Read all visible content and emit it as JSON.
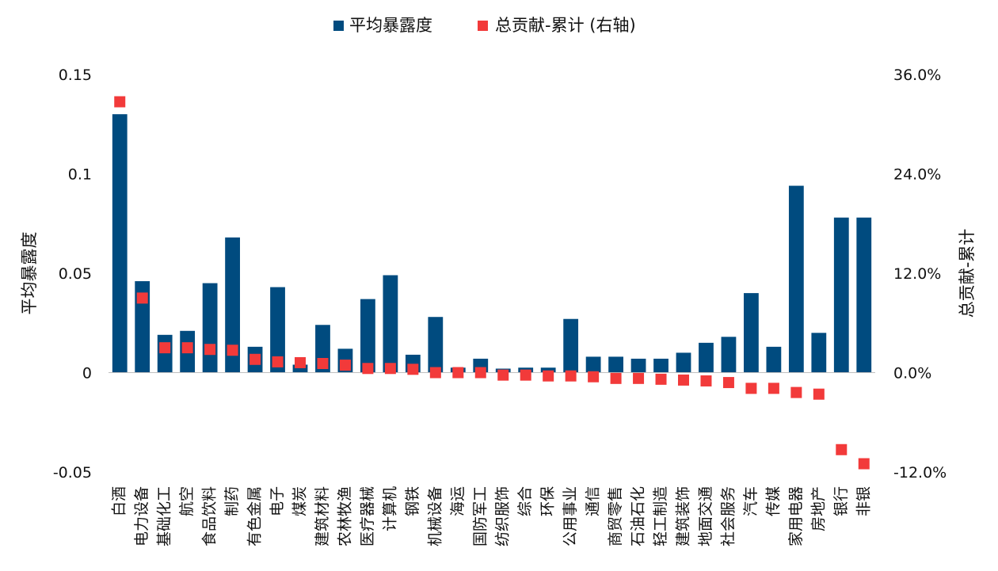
{
  "chart_data": {
    "type": "bar",
    "legend": {
      "placement": "top",
      "entries": [
        {
          "label": "平均暴露度",
          "color": "#004B7F",
          "marker": "bar"
        },
        {
          "label": "总贡献-累计 (右轴)",
          "color": "#F23A3A",
          "marker": "square"
        }
      ]
    },
    "left_axis": {
      "label": "平均暴露度",
      "ylim": [
        -0.05,
        0.15
      ],
      "ticks": [
        "-0.05",
        "0",
        "0.05",
        "0.1",
        "0.15"
      ]
    },
    "right_axis": {
      "label": "总贡献-累计",
      "ylim": [
        -12.0,
        36.0
      ],
      "ticks": [
        "-12.0%",
        "0.0%",
        "12.0%",
        "24.0%",
        "36.0%"
      ]
    },
    "grid": false,
    "categories": [
      "白酒",
      "电力设备",
      "基础化工",
      "航空",
      "食品饮料",
      "制药",
      "有色金属",
      "电子",
      "煤炭",
      "建筑材料",
      "农林牧渔",
      "医疗器械",
      "计算机",
      "钢铁",
      "机械设备",
      "海运",
      "国防军工",
      "纺织服饰",
      "综合",
      "环保",
      "公用事业",
      "通信",
      "商贸零售",
      "石油石化",
      "轻工制造",
      "建筑装饰",
      "地面交通",
      "社会服务",
      "汽车",
      "传媒",
      "家用电器",
      "房地产",
      "银行",
      "非银"
    ],
    "series": [
      {
        "name": "平均暴露度",
        "axis": "left",
        "color": "#004B7F",
        "values": [
          0.13,
          0.046,
          0.019,
          0.021,
          0.045,
          0.068,
          0.013,
          0.043,
          0.004,
          0.024,
          0.012,
          0.037,
          0.049,
          0.009,
          0.028,
          0.0025,
          0.007,
          0.002,
          0.0025,
          0.0025,
          0.027,
          0.008,
          0.008,
          0.007,
          0.007,
          0.01,
          0.015,
          0.018,
          0.04,
          0.013,
          0.094,
          0.02,
          0.078,
          0.078
        ]
      },
      {
        "name": "总贡献-累计 (右轴)",
        "axis": "right",
        "color": "#F23A3A",
        "values": [
          32.7,
          9.0,
          3.0,
          3.0,
          2.8,
          2.7,
          1.6,
          1.3,
          1.2,
          1.1,
          0.9,
          0.5,
          0.5,
          0.4,
          0.0,
          0.0,
          0.0,
          -0.3,
          -0.3,
          -0.4,
          -0.4,
          -0.5,
          -0.7,
          -0.7,
          -0.8,
          -0.9,
          -1.0,
          -1.2,
          -1.9,
          -1.9,
          -2.4,
          -2.6,
          -9.3,
          -11.0
        ]
      }
    ]
  }
}
